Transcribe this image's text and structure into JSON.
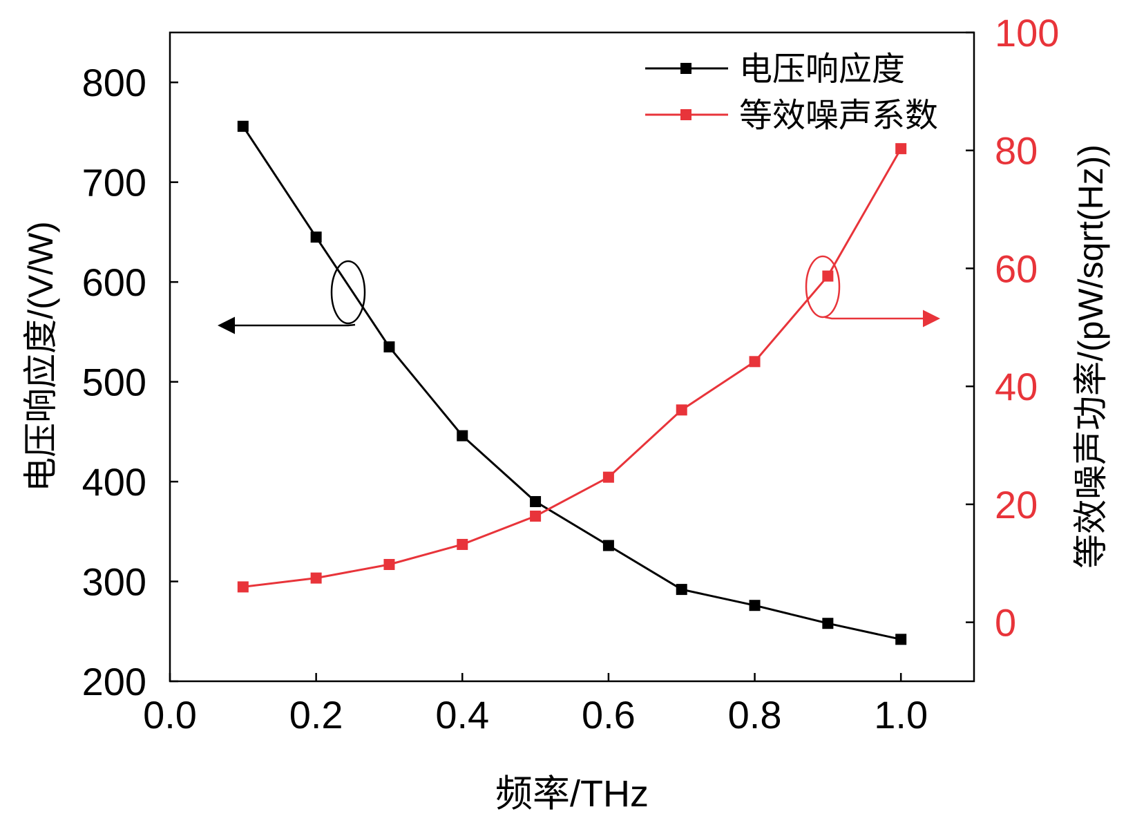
{
  "chart_data": {
    "type": "line",
    "x": [
      0.1,
      0.2,
      0.3,
      0.4,
      0.5,
      0.6,
      0.7,
      0.8,
      0.9,
      1.0
    ],
    "xlabel": "频率/THz",
    "xlim": [
      0.0,
      1.1
    ],
    "xticks": [
      "0.0",
      "0.2",
      "0.4",
      "0.6",
      "0.8",
      "1.0"
    ],
    "xtick_values": [
      0.0,
      0.2,
      0.4,
      0.6,
      0.8,
      1.0
    ],
    "left_axis": {
      "label": "电压响应度/(V/W)",
      "ylim": [
        200,
        850
      ],
      "ticks": [
        "200",
        "300",
        "400",
        "500",
        "600",
        "700",
        "800"
      ],
      "tick_values": [
        200,
        300,
        400,
        500,
        600,
        700,
        800
      ],
      "color": "#000000"
    },
    "right_axis": {
      "label": "等效噪声功率/(pW/sqrt(Hz))",
      "ylim": [
        -10,
        100
      ],
      "ticks": [
        "0",
        "20",
        "40",
        "60",
        "80",
        "100"
      ],
      "tick_values": [
        0,
        20,
        40,
        60,
        80,
        100
      ],
      "color": "#e8343a"
    },
    "series": [
      {
        "name": "电压响应度",
        "axis": "left",
        "color": "#000000",
        "values": [
          756,
          645,
          535,
          446,
          380,
          336,
          292,
          276,
          258,
          242
        ]
      },
      {
        "name": "等效噪声系数",
        "axis": "right",
        "color": "#e8343a",
        "values": [
          6.0,
          7.5,
          9.8,
          13.2,
          18.0,
          24.6,
          36.0,
          44.2,
          58.7,
          80.3
        ]
      }
    ],
    "legend_position": "top-right",
    "annotations": [
      {
        "kind": "ellipse-arrow",
        "series": "电压响应度",
        "near_x": 0.25,
        "near_y": 594,
        "arrow_direction": "left"
      },
      {
        "kind": "ellipse-arrow",
        "series": "等效噪声系数",
        "near_x": 0.9,
        "near_y": 57.5,
        "arrow_direction": "right"
      }
    ]
  }
}
